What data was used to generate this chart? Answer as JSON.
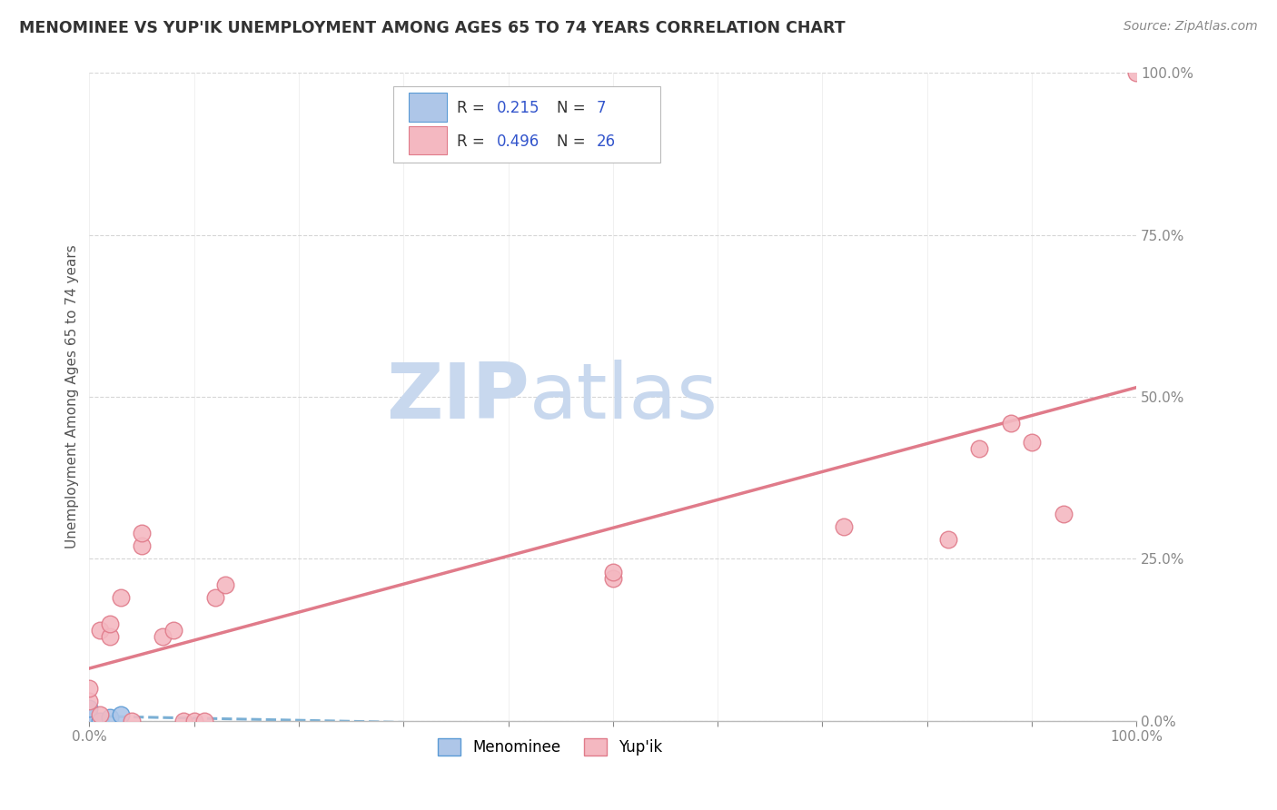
{
  "title": "MENOMINEE VS YUP'IK UNEMPLOYMENT AMONG AGES 65 TO 74 YEARS CORRELATION CHART",
  "source": "Source: ZipAtlas.com",
  "ylabel": "Unemployment Among Ages 65 to 74 years",
  "xlim": [
    0,
    1.0
  ],
  "ylim": [
    0,
    1.0
  ],
  "xticks": [
    0.0,
    0.1,
    0.2,
    0.3,
    0.4,
    0.5,
    0.6,
    0.7,
    0.8,
    0.9,
    1.0
  ],
  "yticks": [
    0.0,
    0.25,
    0.5,
    0.75,
    1.0
  ],
  "xticklabels_show": [
    "0.0%",
    "100.0%"
  ],
  "yticklabels": [
    "0.0%",
    "25.0%",
    "50.0%",
    "75.0%",
    "100.0%"
  ],
  "menominee_x": [
    0.0,
    0.0,
    0.0,
    0.0,
    0.01,
    0.02,
    0.03
  ],
  "menominee_y": [
    0.0,
    0.005,
    0.01,
    0.02,
    0.0,
    0.005,
    0.01
  ],
  "yupik_x": [
    0.0,
    0.0,
    0.01,
    0.01,
    0.02,
    0.02,
    0.03,
    0.04,
    0.05,
    0.05,
    0.07,
    0.08,
    0.09,
    0.1,
    0.11,
    0.12,
    0.13,
    0.5,
    0.5,
    0.72,
    0.82,
    0.85,
    0.88,
    0.9,
    0.93,
    1.0
  ],
  "yupik_y": [
    0.03,
    0.05,
    0.01,
    0.14,
    0.13,
    0.15,
    0.19,
    0.0,
    0.27,
    0.29,
    0.13,
    0.14,
    0.0,
    0.0,
    0.0,
    0.19,
    0.21,
    0.22,
    0.23,
    0.3,
    0.28,
    0.42,
    0.46,
    0.43,
    0.32,
    1.0
  ],
  "menominee_color": "#aec6e8",
  "menominee_edge_color": "#5b9bd5",
  "yupik_color": "#f4b8c1",
  "yupik_edge_color": "#e07b8a",
  "menominee_R": 0.215,
  "menominee_N": 7,
  "yupik_R": 0.496,
  "yupik_N": 26,
  "menominee_line_color": "#7aafd4",
  "yupik_line_color": "#e07b8a",
  "background_color": "#ffffff",
  "grid_color": "#cccccc",
  "title_color": "#333333",
  "legend_R_color": "#3355cc",
  "legend_N_color": "#3355cc",
  "ytick_color": "#3355cc",
  "watermark_zip_color": "#c8d8ee",
  "watermark_atlas_color": "#c8d8ee",
  "marker_size": 180
}
